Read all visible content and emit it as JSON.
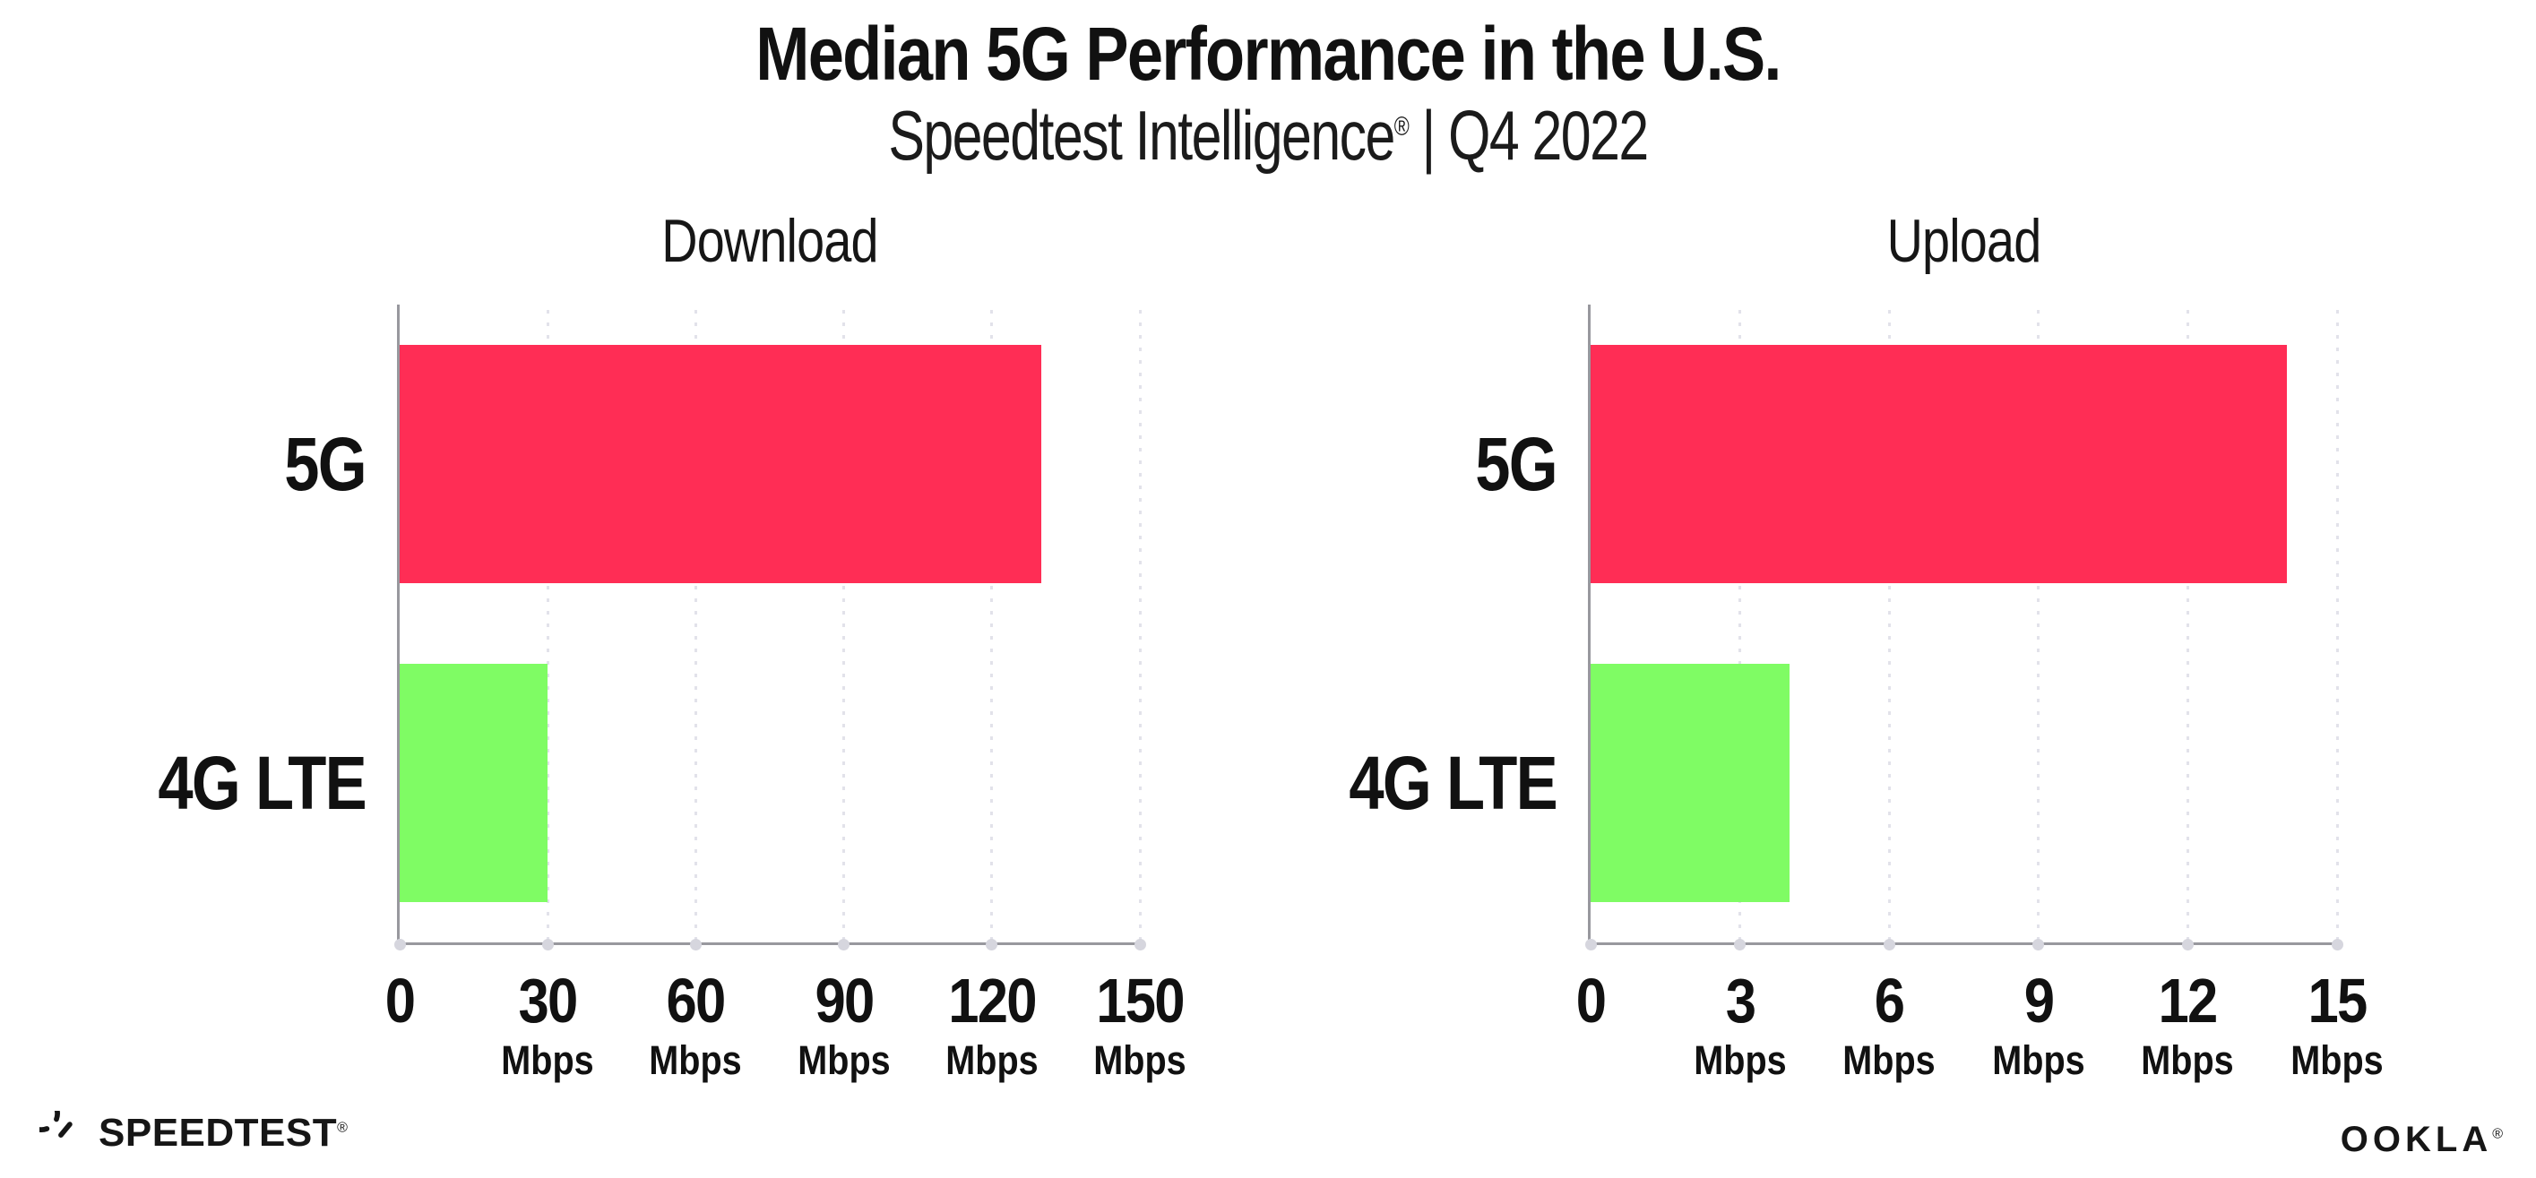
{
  "header": {
    "title": "Median 5G Performance in the U.S.",
    "subtitle_pre": "Speedtest Intelligence",
    "subtitle_mark": "®",
    "subtitle_post": " | Q4 2022"
  },
  "chart_data": [
    {
      "type": "bar",
      "orientation": "horizontal",
      "title": "Download",
      "categories": [
        "5G",
        "4G LTE"
      ],
      "values": [
        130,
        30
      ],
      "unit": "Mbps",
      "xlim": [
        0,
        150
      ],
      "xticks": [
        0,
        30,
        60,
        90,
        120,
        150
      ],
      "xtick_unit": "Mbps",
      "bar_colors": [
        "#FF2D55",
        "#7FFC64"
      ],
      "grid": "vertical-dotted",
      "legend": false
    },
    {
      "type": "bar",
      "orientation": "horizontal",
      "title": "Upload",
      "categories": [
        "5G",
        "4G LTE"
      ],
      "values": [
        14,
        4
      ],
      "unit": "Mbps",
      "xlim": [
        0,
        15
      ],
      "xticks": [
        0,
        3,
        6,
        9,
        12,
        15
      ],
      "xtick_unit": "Mbps",
      "bar_colors": [
        "#FF2D55",
        "#7FFC64"
      ],
      "grid": "vertical-dotted",
      "legend": false
    }
  ],
  "footer": {
    "speedtest_logo_text": "SPEEDTEST",
    "speedtest_logo_mark": "®",
    "ookla_logo_text": "OOKLA",
    "ookla_logo_mark": "®"
  },
  "colors": {
    "bar_5g": "#FF2D55",
    "bar_4g_lte": "#7FFC64",
    "axis": "#98989E",
    "gridline": "#E2E2EA",
    "tick_dot": "#D6D6DE",
    "text": "#111111",
    "background": "#FFFFFF"
  }
}
